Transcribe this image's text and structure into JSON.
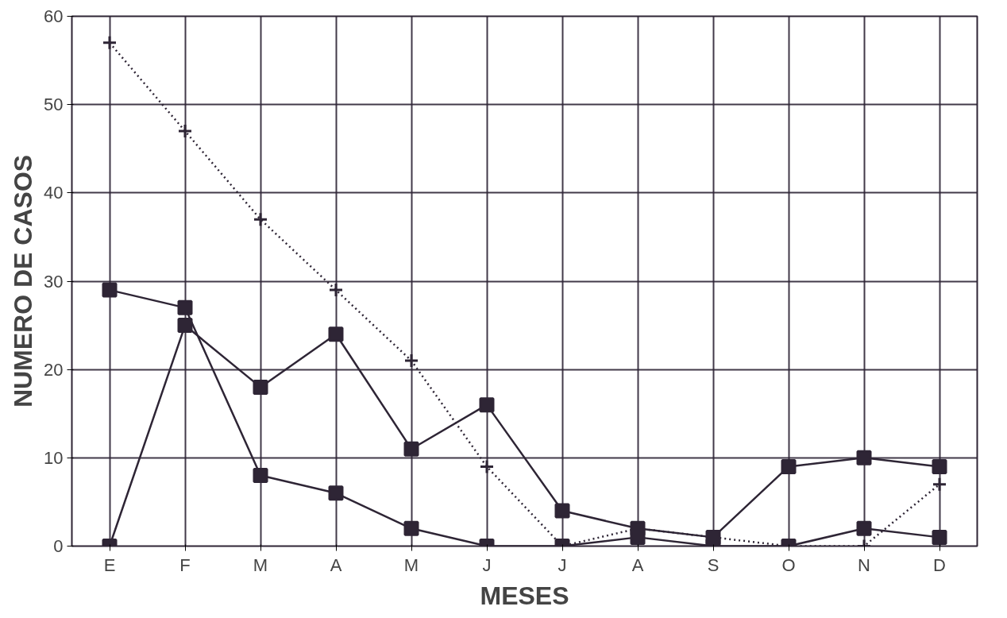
{
  "chart_data": {
    "type": "line",
    "xlabel": "MESES",
    "ylabel": "NUMERO DE CASOS",
    "categories": [
      "E",
      "F",
      "M",
      "A",
      "M",
      "J",
      "J",
      "A",
      "S",
      "O",
      "N",
      "D"
    ],
    "ylim": [
      0,
      60
    ],
    "yticks": [
      0,
      10,
      20,
      30,
      40,
      50,
      60
    ],
    "grid": true,
    "series": [
      {
        "color": "#2e2535",
        "marker": "cross",
        "line_style": "dotted",
        "values": [
          57,
          47,
          37,
          29,
          21,
          9,
          0,
          2,
          1,
          0,
          0,
          7
        ]
      },
      {
        "color": "#2e2535",
        "marker": "square",
        "line_style": "solid",
        "values": [
          0,
          25,
          18,
          24,
          11,
          16,
          4,
          2,
          1,
          9,
          10,
          9
        ]
      },
      {
        "color": "#2e2535",
        "marker": "square",
        "line_style": "solid",
        "values": [
          29,
          27,
          8,
          6,
          2,
          0,
          0,
          1,
          0,
          0,
          2,
          1
        ]
      }
    ]
  }
}
